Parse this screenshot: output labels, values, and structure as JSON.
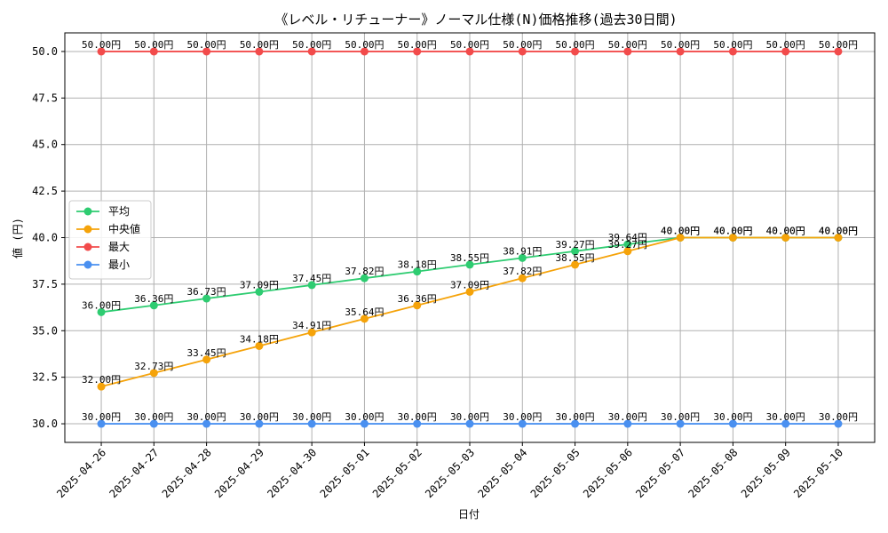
{
  "chart_data": {
    "type": "line",
    "title": "《レベル・リチューナー》ノーマル仕様(N)価格推移(過去30日間)",
    "xlabel": "日付",
    "ylabel": "値 (円)",
    "ylim": [
      29.0,
      51.0
    ],
    "yticks": [
      30.0,
      32.5,
      35.0,
      37.5,
      40.0,
      42.5,
      45.0,
      47.5,
      50.0
    ],
    "grid": true,
    "legend_position": "center-left",
    "label_suffix": "円",
    "categories": [
      "2025-04-26",
      "2025-04-27",
      "2025-04-28",
      "2025-04-29",
      "2025-04-30",
      "2025-05-01",
      "2025-05-02",
      "2025-05-03",
      "2025-05-04",
      "2025-05-05",
      "2025-05-06",
      "2025-05-07",
      "2025-05-08",
      "2025-05-09",
      "2025-05-10"
    ],
    "series": [
      {
        "name": "平均",
        "color": "#2ecc71",
        "values": [
          36.0,
          36.36,
          36.73,
          37.09,
          37.45,
          37.82,
          38.18,
          38.55,
          38.91,
          39.27,
          39.64,
          40.0,
          40.0,
          40.0,
          40.0
        ]
      },
      {
        "name": "中央値",
        "color": "#f5a30a",
        "values": [
          32.0,
          32.73,
          33.45,
          34.18,
          34.91,
          35.64,
          36.36,
          37.09,
          37.82,
          38.55,
          39.27,
          40.0,
          40.0,
          40.0,
          40.0
        ]
      },
      {
        "name": "最大",
        "color": "#f24b4b",
        "values": [
          50.0,
          50.0,
          50.0,
          50.0,
          50.0,
          50.0,
          50.0,
          50.0,
          50.0,
          50.0,
          50.0,
          50.0,
          50.0,
          50.0,
          50.0
        ]
      },
      {
        "name": "最小",
        "color": "#4a90f0",
        "values": [
          30.0,
          30.0,
          30.0,
          30.0,
          30.0,
          30.0,
          30.0,
          30.0,
          30.0,
          30.0,
          30.0,
          30.0,
          30.0,
          30.0,
          30.0
        ]
      }
    ]
  }
}
